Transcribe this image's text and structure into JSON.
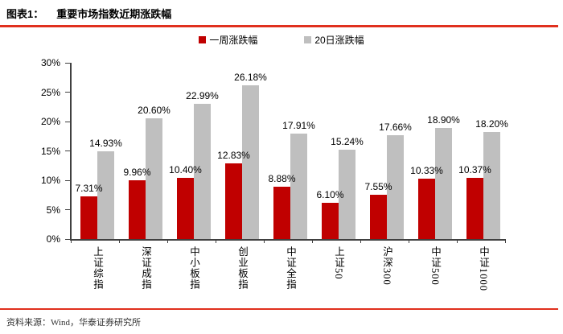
{
  "header": {
    "figure_label": "图表1：",
    "title": "重要市场指数近期涨跌幅"
  },
  "legend": [
    {
      "label": "一周涨跌幅",
      "color": "#C00000"
    },
    {
      "label": "20日涨跌幅",
      "color": "#BFBFBF"
    }
  ],
  "chart_data": {
    "type": "bar",
    "title": "重要市场指数近期涨跌幅",
    "categories": [
      "上证综指",
      "深证成指",
      "中小板指",
      "创业板指",
      "中证全指",
      "上证50",
      "沪深300",
      "中证500",
      "中证1000"
    ],
    "series": [
      {
        "name": "一周涨跌幅",
        "color": "#C00000",
        "values": [
          7.31,
          9.96,
          10.4,
          12.83,
          8.88,
          6.1,
          7.55,
          10.33,
          10.37
        ]
      },
      {
        "name": "20日涨跌幅",
        "color": "#BFBFBF",
        "values": [
          14.93,
          20.6,
          22.99,
          26.18,
          17.91,
          15.24,
          17.66,
          18.9,
          18.2
        ]
      }
    ],
    "xlabel": "",
    "ylabel": "",
    "ylim": [
      0,
      30
    ],
    "ytick_step": 5,
    "yticks": [
      "0%",
      "5%",
      "10%",
      "15%",
      "20%",
      "25%",
      "30%"
    ],
    "data_label_suffix": "%",
    "data_label_decimals": 2,
    "grid": false,
    "legend_position": "top-center"
  },
  "footer": {
    "source": "资料来源：Wind，华泰证券研究所"
  },
  "colors": {
    "rule_red": "#E0301E",
    "axis": "#404040",
    "bar_red": "#C00000",
    "bar_gray": "#BFBFBF"
  }
}
